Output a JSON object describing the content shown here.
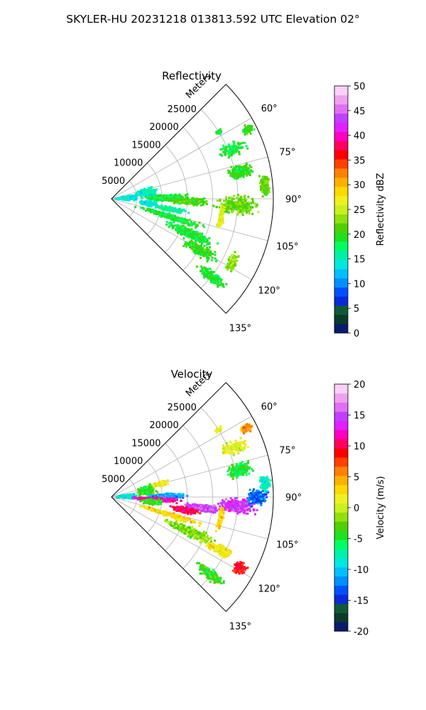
{
  "figure_title": "SKYLER-HU  20231218  013813.592 UTC Elevation 02°",
  "chart_data": [
    {
      "type": "heatmap",
      "subtype": "polar-sector-radar-ppi",
      "title": "Reflectivity",
      "radial_axis_label": "Meters",
      "angle_range_deg": [
        45,
        135
      ],
      "radial_range_m": [
        0,
        32000
      ],
      "radial_tick_labels": [
        "5000",
        "10000",
        "15000",
        "20000",
        "25000"
      ],
      "angle_tick_labels": [
        "60°",
        "75°",
        "90°",
        "105°",
        "120°",
        "135°"
      ],
      "grid": true,
      "colorbar": {
        "label": "Reflectivity dBZ",
        "range": [
          0,
          50
        ],
        "tick_labels": [
          "0",
          "5",
          "10",
          "15",
          "20",
          "25",
          "30",
          "35",
          "40",
          "45",
          "50"
        ],
        "colors": [
          "#0a1a6e",
          "#0b3a2a",
          "#0f5a36",
          "#0a2ad8",
          "#0050ff",
          "#0090ff",
          "#00c0ff",
          "#00e8e0",
          "#00f0a8",
          "#00ff60",
          "#20e020",
          "#50d000",
          "#90e010",
          "#c8f020",
          "#f0f020",
          "#ffd800",
          "#ffb000",
          "#ff8000",
          "#ff4000",
          "#ff0000",
          "#ff0060",
          "#ff00c0",
          "#e020ff",
          "#c040ff",
          "#e070f0",
          "#f0a0f0",
          "#f8d0f8"
        ]
      },
      "echo_blobs": [
        {
          "angle": 88,
          "r": 3000,
          "dang": 9,
          "dr": 2500,
          "n": 260,
          "v": 14
        },
        {
          "angle": 80,
          "r": 7000,
          "dang": 10,
          "dr": 2500,
          "n": 180,
          "v": 15
        },
        {
          "angle": 89,
          "r": 11000,
          "dang": 4,
          "dr": 5000,
          "n": 320,
          "v": 19
        },
        {
          "angle": 92,
          "r": 15000,
          "dang": 3,
          "dr": 4500,
          "n": 260,
          "v": 21
        },
        {
          "angle": 97,
          "r": 7500,
          "dang": 5,
          "dr": 2500,
          "n": 160,
          "v": 14
        },
        {
          "angle": 100,
          "r": 12000,
          "dang": 3,
          "dr": 4000,
          "n": 150,
          "v": 16
        },
        {
          "angle": 107,
          "r": 12000,
          "dang": 3,
          "dr": 8000,
          "n": 280,
          "v": 19
        },
        {
          "angle": 114,
          "r": 17000,
          "dang": 4,
          "dr": 6000,
          "n": 320,
          "v": 19
        },
        {
          "angle": 120,
          "r": 20000,
          "dang": 4,
          "dr": 5000,
          "n": 220,
          "v": 20
        },
        {
          "angle": 128,
          "r": 25000,
          "dang": 3,
          "dr": 4000,
          "n": 180,
          "v": 19
        },
        {
          "angle": 93,
          "r": 25000,
          "dang": 5,
          "dr": 5000,
          "n": 320,
          "v": 22
        },
        {
          "angle": 78,
          "r": 26000,
          "dang": 4,
          "dr": 3000,
          "n": 200,
          "v": 20
        },
        {
          "angle": 85,
          "r": 30500,
          "dang": 5,
          "dr": 1200,
          "n": 170,
          "v": 22
        },
        {
          "angle": 68,
          "r": 26000,
          "dang": 4,
          "dr": 3500,
          "n": 110,
          "v": 19
        },
        {
          "angle": 63,
          "r": 30000,
          "dang": 2,
          "dr": 1500,
          "n": 90,
          "v": 20
        },
        {
          "angle": 58,
          "r": 25000,
          "dang": 1.5,
          "dr": 1000,
          "n": 30,
          "v": 19
        },
        {
          "angle": 100,
          "r": 22000,
          "dang": 8,
          "dr": 600,
          "n": 120,
          "v": 26
        },
        {
          "angle": 118,
          "r": 27000,
          "dang": 5,
          "dr": 1200,
          "n": 120,
          "v": 23
        }
      ]
    },
    {
      "type": "heatmap",
      "subtype": "polar-sector-radar-ppi",
      "title": "Velocity",
      "radial_axis_label": "Meters",
      "angle_range_deg": [
        45,
        135
      ],
      "radial_range_m": [
        0,
        32000
      ],
      "radial_tick_labels": [
        "5000",
        "10000",
        "15000",
        "20000",
        "25000"
      ],
      "angle_tick_labels": [
        "60°",
        "75°",
        "90°",
        "105°",
        "120°",
        "135°"
      ],
      "grid": true,
      "colorbar": {
        "label": "Velocity (m/s)",
        "range": [
          -20,
          20
        ],
        "tick_labels": [
          "-20",
          "-15",
          "-10",
          "-5",
          "0",
          "5",
          "10",
          "15",
          "20"
        ],
        "colors": [
          "#0a1a6e",
          "#0b3a2a",
          "#0f5a36",
          "#0a2ad8",
          "#0050ff",
          "#0090ff",
          "#00c0ff",
          "#00e8e0",
          "#00f0a8",
          "#00ff60",
          "#20e020",
          "#50d000",
          "#90e010",
          "#c8f020",
          "#f0f020",
          "#ffd800",
          "#ffb000",
          "#ff8000",
          "#ff4000",
          "#ff0000",
          "#ff0060",
          "#ff00c0",
          "#e020ff",
          "#c040ff",
          "#e070f0",
          "#f0a0f0",
          "#f8d0f8"
        ]
      },
      "echo_blobs": [
        {
          "angle": 88,
          "r": 3000,
          "dang": 9,
          "dr": 2500,
          "n": 260,
          "v": -9
        },
        {
          "angle": 80,
          "r": 7000,
          "dang": 10,
          "dr": 2500,
          "n": 180,
          "v": -4
        },
        {
          "angle": 89,
          "r": 11000,
          "dang": 3,
          "dr": 4500,
          "n": 260,
          "v": -11
        },
        {
          "angle": 93,
          "r": 9000,
          "dang": 3,
          "dr": 6000,
          "n": 320,
          "v": 12
        },
        {
          "angle": 97,
          "r": 18000,
          "dang": 3,
          "dr": 4500,
          "n": 320,
          "v": 15
        },
        {
          "angle": 94,
          "r": 25000,
          "dang": 4,
          "dr": 4500,
          "n": 300,
          "v": 14
        },
        {
          "angle": 90,
          "r": 29000,
          "dang": 4,
          "dr": 2500,
          "n": 200,
          "v": -13
        },
        {
          "angle": 100,
          "r": 15000,
          "dang": 3,
          "dr": 3500,
          "n": 200,
          "v": 10
        },
        {
          "angle": 97,
          "r": 8000,
          "dang": 5,
          "dr": 2500,
          "n": 160,
          "v": -4
        },
        {
          "angle": 107,
          "r": 12000,
          "dang": 3,
          "dr": 8000,
          "n": 240,
          "v": 3
        },
        {
          "angle": 114,
          "r": 17000,
          "dang": 4,
          "dr": 6000,
          "n": 300,
          "v": -2
        },
        {
          "angle": 116,
          "r": 24000,
          "dang": 3,
          "dr": 3500,
          "n": 220,
          "v": 2
        },
        {
          "angle": 119,
          "r": 29000,
          "dang": 3,
          "dr": 1500,
          "n": 160,
          "v": 9
        },
        {
          "angle": 128,
          "r": 25000,
          "dang": 3,
          "dr": 4000,
          "n": 160,
          "v": -4
        },
        {
          "angle": 78,
          "r": 26000,
          "dang": 4,
          "dr": 3000,
          "n": 200,
          "v": -5
        },
        {
          "angle": 85,
          "r": 30500,
          "dang": 4,
          "dr": 1200,
          "n": 150,
          "v": -8
        },
        {
          "angle": 68,
          "r": 26000,
          "dang": 4,
          "dr": 3500,
          "n": 110,
          "v": 1
        },
        {
          "angle": 63,
          "r": 30000,
          "dang": 2,
          "dr": 1500,
          "n": 90,
          "v": 5
        },
        {
          "angle": 58,
          "r": 25000,
          "dang": 1.5,
          "dr": 1000,
          "n": 30,
          "v": 2
        },
        {
          "angle": 75,
          "r": 10000,
          "dang": 4,
          "dr": 2000,
          "n": 90,
          "v": 2
        },
        {
          "angle": 101,
          "r": 22000,
          "dang": 8,
          "dr": 600,
          "n": 120,
          "v": 3
        }
      ]
    }
  ]
}
